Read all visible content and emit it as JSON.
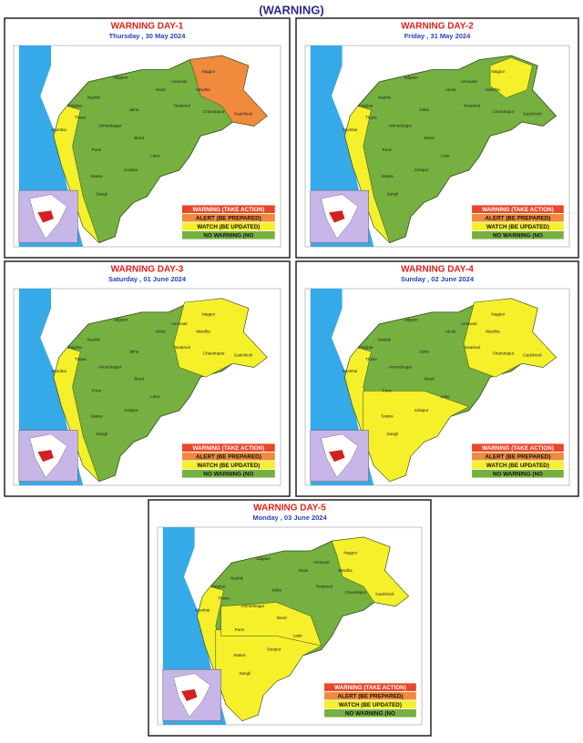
{
  "header": {
    "title": "(WARNING)"
  },
  "legend": [
    {
      "label": "WARNING (TAKE ACTION)",
      "color": "#e8472a"
    },
    {
      "label": "ALERT (BE PREPARED)",
      "color": "#f08a3c"
    },
    {
      "label": "WATCH (BE UPDATED)",
      "color": "#f5f02a"
    },
    {
      "label": "NO WARNING (NO",
      "color": "#76b041"
    }
  ],
  "places": [
    "Mumbai",
    "Palghar",
    "Thane",
    "Nashik",
    "Jalgaon",
    "Ahmednagar",
    "Pune",
    "Satara",
    "Sangli",
    "Solapur",
    "Beed",
    "Latur",
    "Jalna",
    "Akola",
    "Amravati",
    "Nagpur",
    "Wardha",
    "Yavatmal",
    "Chandrapur",
    "Gadchiroli"
  ],
  "panels": [
    {
      "title": "WARNING  DAY-1",
      "date": "Thursday ,  30 May 2024"
    },
    {
      "title": "WARNING  DAY-2",
      "date": "Friday ,  31 May 2024"
    },
    {
      "title": "WARNING  DAY-3",
      "date": "Saturday ,  01 June 2024"
    },
    {
      "title": "WARNING  DAY-4",
      "date": "Sunday ,  02 June 2024"
    },
    {
      "title": "WARNING  DAY-5",
      "date": "Monday ,  03 June 2024"
    }
  ]
}
